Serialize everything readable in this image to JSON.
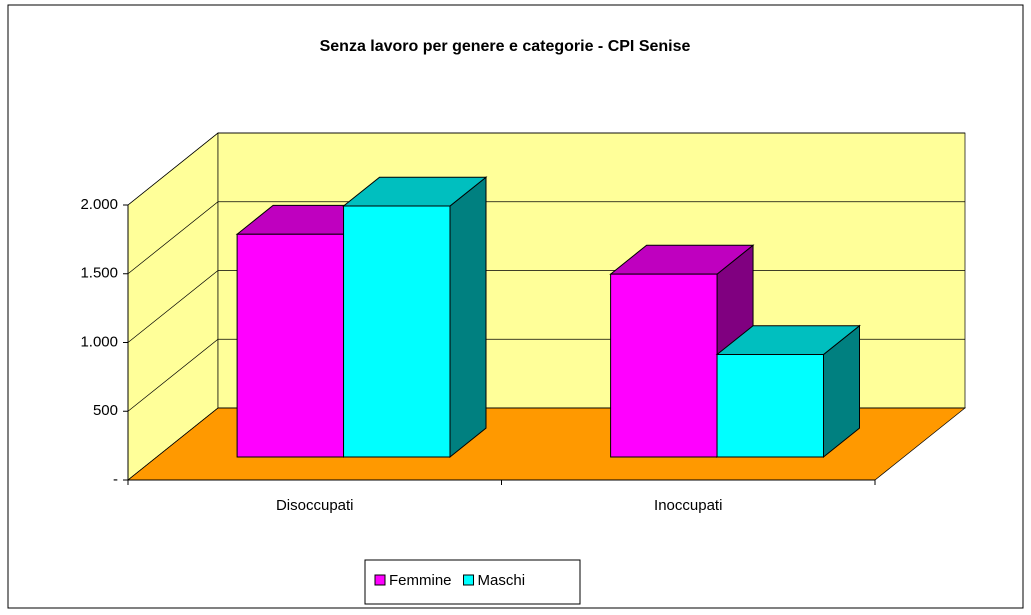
{
  "chart_data": {
    "type": "bar3d",
    "title": "Senza lavoro per genere e categorie - CPI Senise",
    "categories": [
      "Disoccupati",
      "Inoccupati"
    ],
    "series": [
      {
        "name": "Femmine",
        "color": "#ff00ff",
        "values": [
          1620,
          1330
        ]
      },
      {
        "name": "Maschi",
        "color": "#00ffff",
        "values": [
          1825,
          745
        ]
      }
    ],
    "ylim": [
      0,
      2000
    ],
    "yticks": [
      {
        "value": 0,
        "label": "-"
      },
      500,
      {
        "value": 1000,
        "label": "1.000"
      },
      {
        "value": 1500,
        "label": "1.500"
      },
      {
        "value": 2000,
        "label": "2.000"
      }
    ],
    "grid": true,
    "legend": "bottom"
  }
}
